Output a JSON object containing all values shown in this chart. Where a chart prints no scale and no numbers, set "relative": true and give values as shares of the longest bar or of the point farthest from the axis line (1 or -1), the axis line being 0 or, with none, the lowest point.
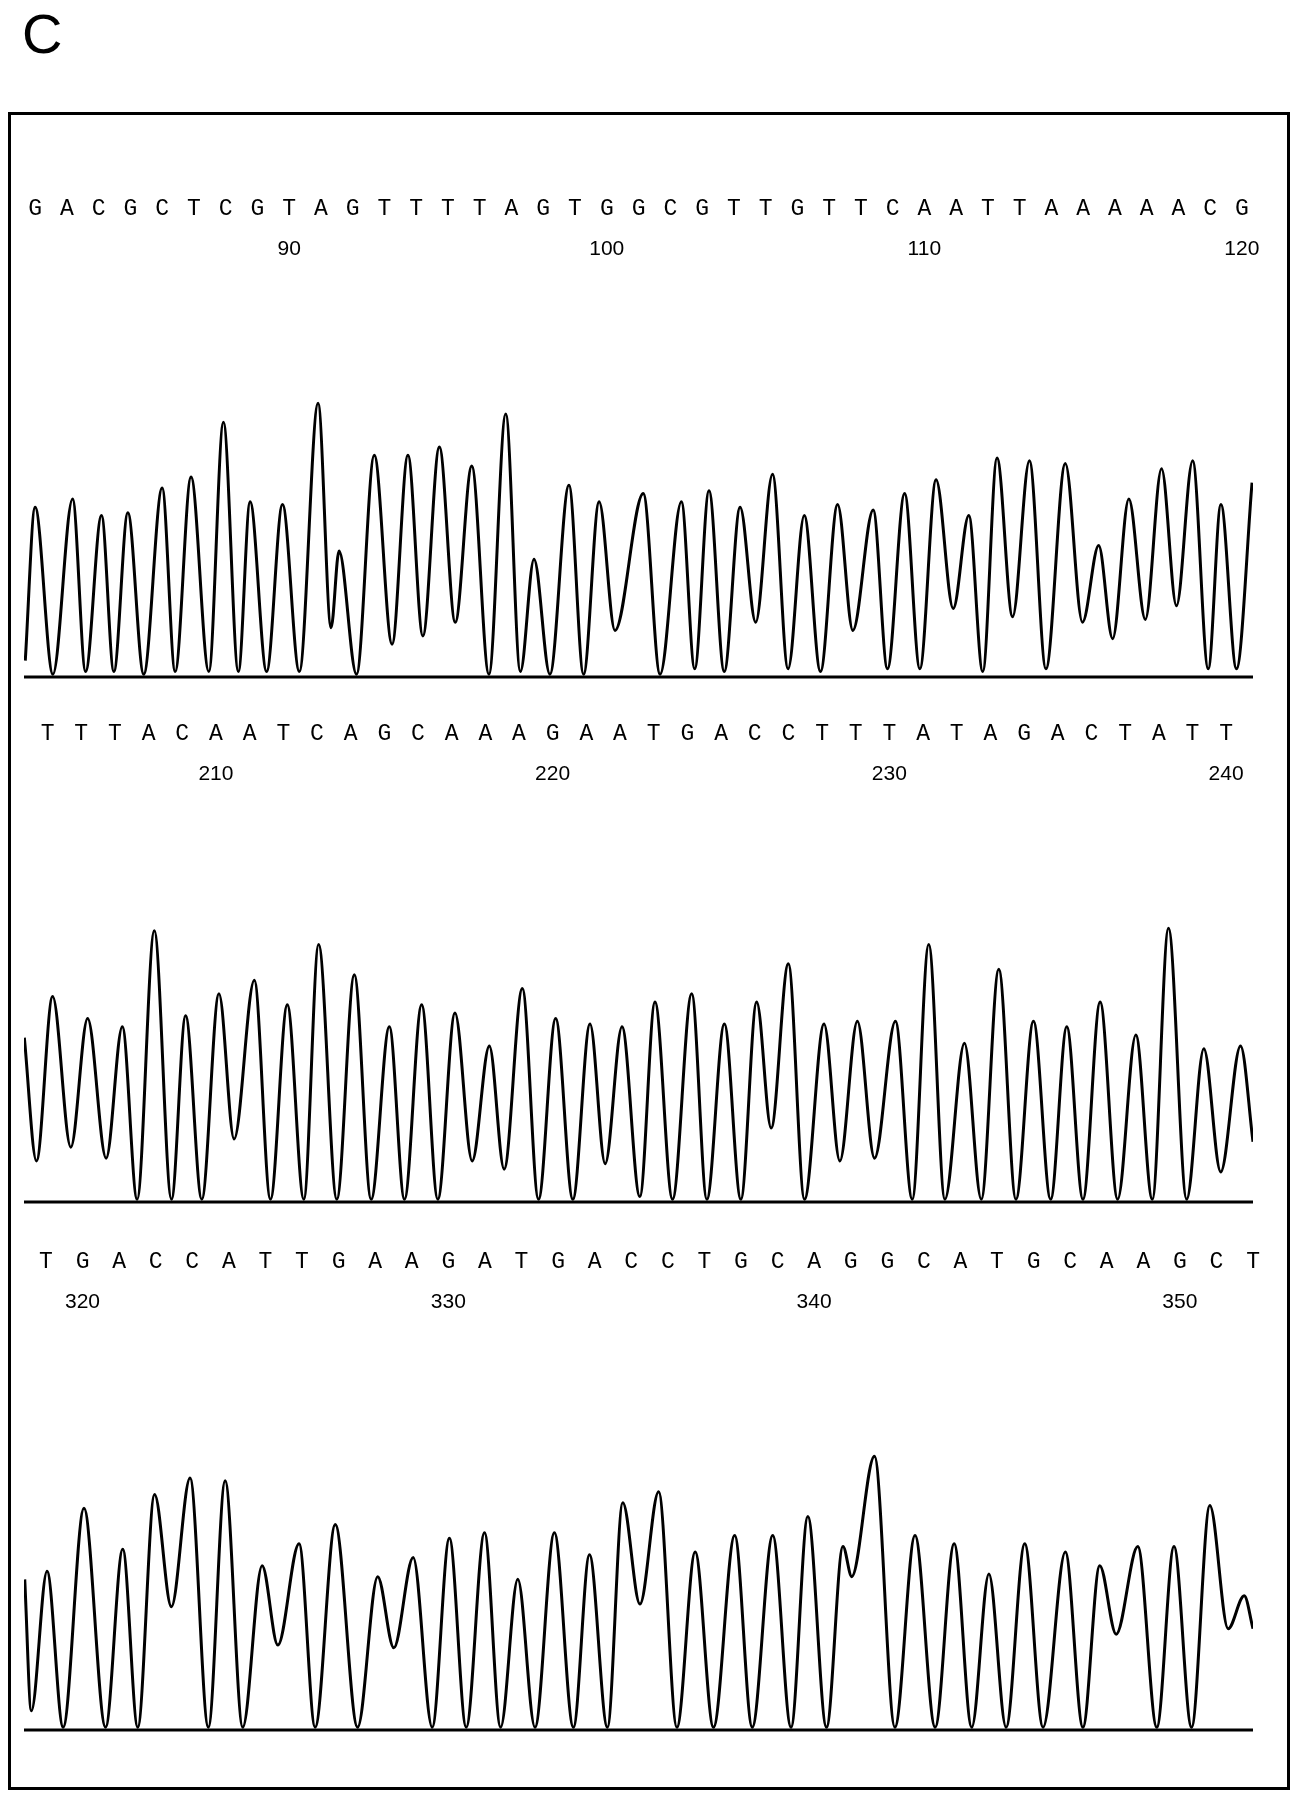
{
  "chart_data": [
    {
      "type": "line",
      "title": "C",
      "relative": true,
      "xlim": [
        81.65,
        120.35
      ],
      "xticks": [
        90,
        100,
        110,
        120
      ],
      "annotations": [
        "GACGCTCGTAGTTTTAGTGGCGTTGTTCAATTAAAAACG"
      ],
      "series": [
        {
          "color": "#000000",
          "x": [
            81.69,
            82.0,
            82.56,
            83.18,
            83.59,
            84.09,
            84.48,
            84.92,
            85.42,
            86.0,
            86.41,
            86.91,
            87.47,
            87.93,
            88.4,
            88.77,
            89.29,
            89.79,
            90.32,
            90.91,
            91.32,
            91.57,
            92.12,
            92.68,
            93.24,
            93.74,
            94.21,
            94.73,
            95.23,
            95.75,
            96.29,
            96.82,
            97.28,
            97.71,
            98.21,
            98.81,
            99.27,
            99.76,
            100.26,
            101.15,
            101.68,
            102.35,
            102.77,
            103.22,
            103.7,
            104.2,
            104.69,
            105.22,
            105.71,
            106.22,
            106.73,
            107.27,
            107.75,
            108.39,
            108.84,
            109.38,
            109.86,
            110.37,
            110.91,
            111.4,
            111.84,
            112.29,
            112.78,
            113.31,
            113.83,
            114.44,
            114.98,
            115.49,
            115.93,
            116.44,
            116.96,
            117.47,
            117.94,
            118.45,
            118.94,
            119.34,
            119.83,
            120.32
          ],
          "values": [
            0.06,
            0.62,
            0.01,
            0.65,
            0.02,
            0.59,
            0.02,
            0.6,
            0.01,
            0.69,
            0.02,
            0.73,
            0.02,
            0.93,
            0.02,
            0.64,
            0.02,
            0.63,
            0.02,
            1.0,
            0.18,
            0.46,
            0.01,
            0.81,
            0.12,
            0.81,
            0.15,
            0.84,
            0.2,
            0.77,
            0.01,
            0.96,
            0.02,
            0.43,
            0.01,
            0.7,
            0.01,
            0.64,
            0.17,
            0.67,
            0.01,
            0.64,
            0.03,
            0.68,
            0.02,
            0.62,
            0.2,
            0.74,
            0.03,
            0.59,
            0.02,
            0.63,
            0.17,
            0.61,
            0.03,
            0.67,
            0.03,
            0.72,
            0.25,
            0.59,
            0.02,
            0.8,
            0.22,
            0.79,
            0.03,
            0.78,
            0.2,
            0.48,
            0.14,
            0.65,
            0.21,
            0.76,
            0.26,
            0.79,
            0.03,
            0.63,
            0.03,
            0.71
          ]
        }
      ]
    },
    {
      "type": "line",
      "relative": true,
      "xlim": [
        204.3,
        240.8
      ],
      "xticks": [
        210,
        220,
        230,
        240
      ],
      "annotations": [
        "TTTACAATCAGCAAAGAATGACCTTTATAGACTATT"
      ],
      "series": [
        {
          "color": "#000000",
          "x": [
            204.31,
            204.67,
            205.15,
            205.69,
            206.19,
            206.74,
            207.22,
            207.66,
            208.17,
            208.68,
            209.1,
            209.58,
            210.09,
            210.54,
            211.14,
            211.62,
            212.12,
            212.61,
            213.05,
            213.59,
            214.11,
            214.61,
            215.15,
            215.6,
            216.11,
            216.59,
            217.1,
            217.61,
            218.12,
            218.56,
            219.1,
            219.58,
            220.09,
            220.6,
            221.11,
            221.56,
            222.06,
            222.59,
            223.04,
            223.56,
            224.13,
            224.58,
            225.1,
            225.59,
            226.06,
            226.49,
            227.0,
            227.48,
            228.06,
            228.53,
            229.05,
            229.56,
            230.18,
            230.68,
            231.17,
            231.65,
            232.23,
            232.73,
            233.25,
            233.76,
            234.28,
            234.79,
            235.27,
            235.75,
            236.26,
            236.78,
            237.32,
            237.81,
            238.29,
            238.83,
            239.34,
            239.84,
            240.43,
            240.8
          ],
          "values": [
            0.6,
            0.15,
            0.75,
            0.2,
            0.67,
            0.16,
            0.64,
            0.01,
            0.99,
            0.01,
            0.68,
            0.01,
            0.76,
            0.23,
            0.81,
            0.01,
            0.72,
            0.01,
            0.94,
            0.01,
            0.83,
            0.01,
            0.64,
            0.01,
            0.72,
            0.01,
            0.69,
            0.15,
            0.57,
            0.12,
            0.78,
            0.01,
            0.67,
            0.01,
            0.65,
            0.14,
            0.64,
            0.02,
            0.73,
            0.01,
            0.76,
            0.01,
            0.65,
            0.01,
            0.73,
            0.27,
            0.87,
            0.01,
            0.65,
            0.15,
            0.66,
            0.16,
            0.66,
            0.01,
            0.94,
            0.01,
            0.58,
            0.01,
            0.85,
            0.01,
            0.66,
            0.01,
            0.64,
            0.01,
            0.73,
            0.01,
            0.61,
            0.01,
            1.0,
            0.01,
            0.56,
            0.11,
            0.57,
            0.22
          ]
        }
      ]
    },
    {
      "type": "line",
      "relative": true,
      "xlim": [
        318.4,
        352.0
      ],
      "xticks": [
        320,
        330,
        340,
        350
      ],
      "annotations": [
        "TGACCATTGAAGATGACCTGCAGGCATGCAAGCT"
      ],
      "series": [
        {
          "color": "#000000",
          "x": [
            318.42,
            318.6,
            319.03,
            319.47,
            320.04,
            320.63,
            321.1,
            321.51,
            321.97,
            322.43,
            322.94,
            323.44,
            323.9,
            324.38,
            324.91,
            325.34,
            325.92,
            326.36,
            326.91,
            327.52,
            328.07,
            328.51,
            329.04,
            329.56,
            330.03,
            330.49,
            330.99,
            331.43,
            331.9,
            332.37,
            332.9,
            333.42,
            333.86,
            334.35,
            334.77,
            335.24,
            335.75,
            336.25,
            336.75,
            337.25,
            337.83,
            338.31,
            338.87,
            339.37,
            339.83,
            340.34,
            340.79,
            341.03,
            341.65,
            342.21,
            342.76,
            343.31,
            343.83,
            344.31,
            344.78,
            345.25,
            345.76,
            346.26,
            346.87,
            347.35,
            347.81,
            348.26,
            348.85,
            349.37,
            349.84,
            350.32,
            350.82,
            351.32,
            351.76,
            352.0
          ],
          "values": [
            0.55,
            0.07,
            0.58,
            0.01,
            0.81,
            0.01,
            0.66,
            0.01,
            0.86,
            0.45,
            0.92,
            0.01,
            0.91,
            0.01,
            0.6,
            0.31,
            0.68,
            0.01,
            0.75,
            0.01,
            0.56,
            0.3,
            0.63,
            0.01,
            0.7,
            0.01,
            0.72,
            0.01,
            0.55,
            0.01,
            0.72,
            0.01,
            0.64,
            0.01,
            0.83,
            0.46,
            0.87,
            0.01,
            0.65,
            0.01,
            0.71,
            0.01,
            0.71,
            0.01,
            0.78,
            0.01,
            0.67,
            0.56,
            1.0,
            0.01,
            0.71,
            0.01,
            0.68,
            0.01,
            0.57,
            0.01,
            0.68,
            0.01,
            0.65,
            0.01,
            0.6,
            0.35,
            0.67,
            0.01,
            0.67,
            0.01,
            0.82,
            0.37,
            0.49,
            0.37
          ]
        }
      ]
    }
  ]
}
